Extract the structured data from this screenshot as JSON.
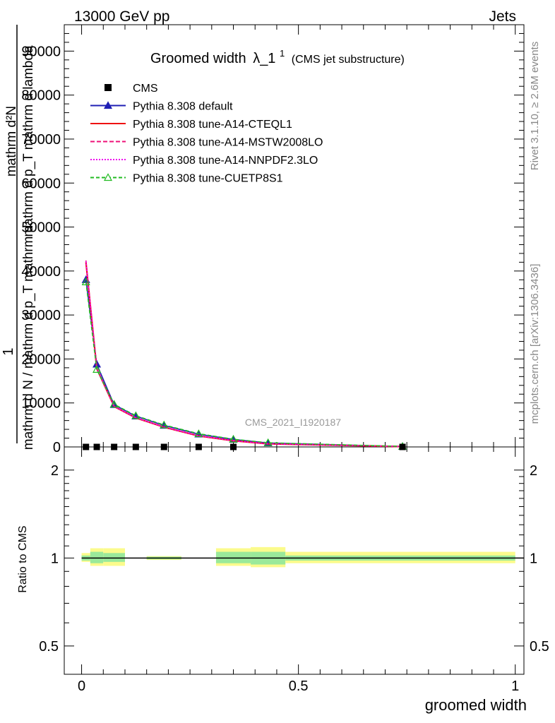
{
  "header": {
    "left": "13000 GeV pp",
    "right": "Jets"
  },
  "side_labels": {
    "rivet": "Rivet 3.1.10, ≥ 2.6M events",
    "mcplots": "mcplots.cern.ch [arXiv:1306.3436]"
  },
  "chart_data": {
    "type": "line",
    "title_main": "Groomed width",
    "title_symbol": "λ_1",
    "title_sup": "1",
    "title_note": "(CMS jet substructure)",
    "watermark": "CMS_2021_I1920187",
    "xlabel": "groomed width",
    "ylabel_top": {
      "one": "1",
      "num": "mathrm d²N",
      "den": "mathrm d p_T mathrm d lambda",
      "num2": "mathrm d N / mathrm d p_T mathrm d",
      "sub": "T"
    },
    "ratio_ylabel": "Ratio to CMS",
    "xlim": [
      -0.04,
      1.02
    ],
    "ylim": [
      0,
      96000
    ],
    "ratio_ylim": [
      0.4,
      2.4
    ],
    "x_ticks": [
      "0",
      "0.5",
      "1"
    ],
    "y_ticks": [
      "0",
      "10000",
      "20000",
      "30000",
      "40000",
      "50000",
      "60000",
      "70000",
      "80000",
      "90000"
    ],
    "ratio_ticks_labeled": [
      "0.5",
      "1",
      "2"
    ],
    "bins": [
      {
        "x": 0.01,
        "lo": 0.0,
        "hi": 0.02
      },
      {
        "x": 0.035,
        "lo": 0.02,
        "hi": 0.05
      },
      {
        "x": 0.075,
        "lo": 0.05,
        "hi": 0.1
      },
      {
        "x": 0.125,
        "lo": 0.1,
        "hi": 0.15
      },
      {
        "x": 0.19,
        "lo": 0.15,
        "hi": 0.23
      },
      {
        "x": 0.27,
        "lo": 0.23,
        "hi": 0.31
      },
      {
        "x": 0.35,
        "lo": 0.31,
        "hi": 0.39
      },
      {
        "x": 0.43,
        "lo": 0.39,
        "hi": 0.47
      },
      {
        "x": 0.74,
        "lo": 0.47,
        "hi": 1.0
      }
    ],
    "data_points": {
      "name": "CMS",
      "x": [
        0.01,
        0.035,
        0.075,
        0.125,
        0.19,
        0.27,
        0.35,
        0.74
      ],
      "y": [
        0,
        0,
        0,
        0,
        0,
        0,
        0,
        0
      ]
    },
    "series": [
      {
        "name": "Pythia 8.308 default",
        "color": "#1f1fb4",
        "dash": "",
        "marker": "triangle-filled",
        "x": [
          0.01,
          0.035,
          0.075,
          0.125,
          0.19,
          0.27,
          0.35,
          0.43,
          0.74
        ],
        "y": [
          38000,
          18800,
          9600,
          7000,
          4900,
          2900,
          1700,
          900,
          100
        ]
      },
      {
        "name": "Pythia 8.308 tune-A14-CTEQL1",
        "color": "#ee1111",
        "dash": "",
        "marker": "none",
        "x": [
          0.01,
          0.035,
          0.075,
          0.125,
          0.19,
          0.27,
          0.35,
          0.43,
          0.74
        ],
        "y": [
          42000,
          17800,
          9200,
          6600,
          4500,
          2500,
          1400,
          700,
          80
        ]
      },
      {
        "name": "Pythia 8.308 tune-A14-MSTW2008LO",
        "color": "#ee1177",
        "dash": "6,3",
        "marker": "none",
        "x": [
          0.01,
          0.035,
          0.075,
          0.125,
          0.19,
          0.27,
          0.35,
          0.43,
          0.74
        ],
        "y": [
          42400,
          17900,
          9250,
          6650,
          4550,
          2550,
          1450,
          720,
          80
        ]
      },
      {
        "name": "Pythia 8.308 tune-A14-NNPDF2.3LO",
        "color": "#ee00ee",
        "dash": "2,2",
        "marker": "none",
        "x": [
          0.01,
          0.035,
          0.075,
          0.125,
          0.19,
          0.27,
          0.35,
          0.43,
          0.74
        ],
        "y": [
          42200,
          17850,
          9220,
          6620,
          4520,
          2520,
          1420,
          710,
          80
        ]
      },
      {
        "name": "Pythia 8.308 tune-CUETP8S1",
        "color": "#22bb22",
        "dash": "5,3",
        "marker": "triangle-open",
        "x": [
          0.01,
          0.035,
          0.075,
          0.125,
          0.19,
          0.27,
          0.35,
          0.43,
          0.74
        ],
        "y": [
          37500,
          17600,
          9700,
          7100,
          5000,
          3000,
          1750,
          950,
          110
        ]
      }
    ],
    "ratio_bands": [
      {
        "lo": 0.0,
        "hi": 0.02,
        "yellow": [
          0.97,
          1.04
        ],
        "green": [
          0.98,
          1.02
        ]
      },
      {
        "lo": 0.02,
        "hi": 0.05,
        "yellow": [
          0.94,
          1.08
        ],
        "green": [
          0.96,
          1.05
        ]
      },
      {
        "lo": 0.05,
        "hi": 0.1,
        "yellow": [
          0.94,
          1.08
        ],
        "green": [
          0.97,
          1.04
        ]
      },
      {
        "lo": 0.15,
        "hi": 0.23,
        "yellow": [
          0.985,
          1.015
        ],
        "green": [
          0.99,
          1.01
        ]
      },
      {
        "lo": 0.31,
        "hi": 0.39,
        "yellow": [
          0.94,
          1.08
        ],
        "green": [
          0.96,
          1.05
        ]
      },
      {
        "lo": 0.39,
        "hi": 0.47,
        "yellow": [
          0.93,
          1.09
        ],
        "green": [
          0.95,
          1.05
        ]
      },
      {
        "lo": 0.47,
        "hi": 1.0,
        "yellow": [
          0.96,
          1.05
        ],
        "green": [
          0.98,
          1.02
        ]
      }
    ]
  }
}
